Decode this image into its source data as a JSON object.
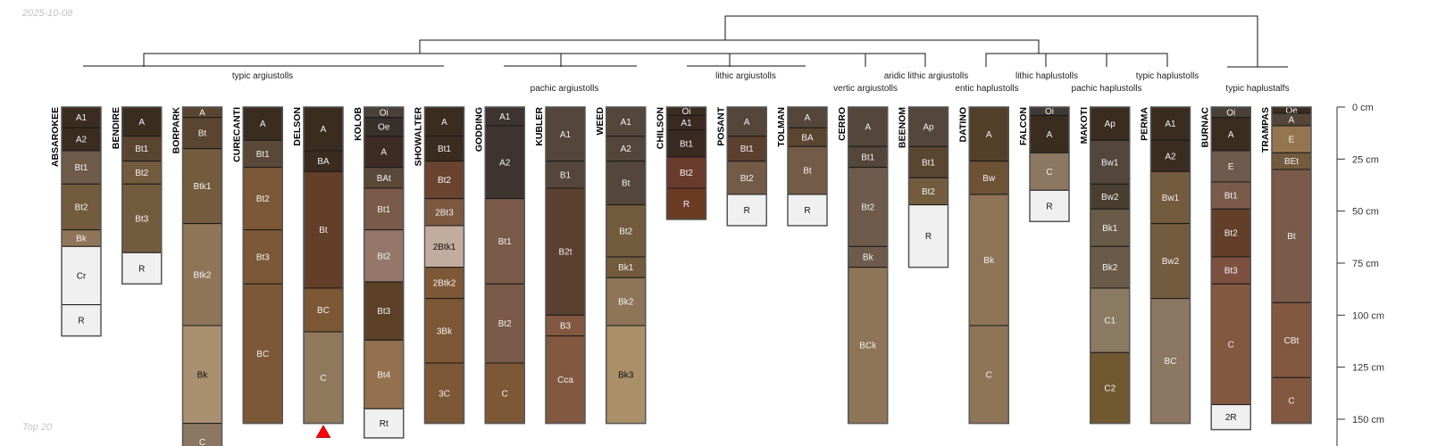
{
  "date_stamp": "2025-10-08",
  "footer_note": "Top 20",
  "depth_axis": {
    "unit": "cm",
    "ticks": [
      "0 cm",
      "25 cm",
      "50 cm",
      "75 cm",
      "100 cm",
      "125 cm",
      "150 cm"
    ],
    "tick_values": [
      0,
      25,
      50,
      75,
      100,
      125,
      150
    ]
  },
  "marker_color": "#ff0000",
  "clusters": [
    {
      "label": "typic argiustolls"
    },
    {
      "label": "pachic argiustolls"
    },
    {
      "label": "lithic argiustolls"
    },
    {
      "label": "vertic argiustolls"
    },
    {
      "label": "aridic lithic argiustolls"
    },
    {
      "label": "entic haplustolls"
    },
    {
      "label": "lithic haplustolls"
    },
    {
      "label": "pachic haplustolls"
    },
    {
      "label": "typic haplustolls"
    },
    {
      "label": "typic haplustalfs"
    }
  ],
  "profiles": [
    {
      "name": "ABSAROKEE",
      "horizons": [
        {
          "name": "A1",
          "top": 0,
          "bottom": 10,
          "color": "#3b2c20"
        },
        {
          "name": "A2",
          "top": 10,
          "bottom": 21,
          "color": "#3b2c20"
        },
        {
          "name": "Bt1",
          "top": 21,
          "bottom": 37,
          "color": "#6e5b49"
        },
        {
          "name": "Bt2",
          "top": 37,
          "bottom": 59,
          "color": "#735b3e"
        },
        {
          "name": "Bk",
          "top": 59,
          "bottom": 67,
          "color": "#8e7558"
        },
        {
          "name": "Cr",
          "top": 67,
          "bottom": 95,
          "color": "#f0f0f0"
        },
        {
          "name": "R",
          "top": 95,
          "bottom": 110,
          "color": "#f0f0f0"
        }
      ]
    },
    {
      "name": "BENDIRE",
      "horizons": [
        {
          "name": "A",
          "top": 0,
          "bottom": 14,
          "color": "#3b2c20"
        },
        {
          "name": "Bt1",
          "top": 14,
          "bottom": 26,
          "color": "#5a4530"
        },
        {
          "name": "Bt2",
          "top": 26,
          "bottom": 37,
          "color": "#735b3e"
        },
        {
          "name": "Bt3",
          "top": 37,
          "bottom": 70,
          "color": "#735b3e"
        },
        {
          "name": "R",
          "top": 70,
          "bottom": 85,
          "color": "#f0f0f0"
        }
      ]
    },
    {
      "name": "BORPARK",
      "horizons": [
        {
          "name": "A",
          "top": 0,
          "bottom": 5,
          "color": "#5a4530"
        },
        {
          "name": "Bt",
          "top": 5,
          "bottom": 20,
          "color": "#5a4530"
        },
        {
          "name": "Btk1",
          "top": 20,
          "bottom": 56,
          "color": "#735b3e"
        },
        {
          "name": "Btk2",
          "top": 56,
          "bottom": 105,
          "color": "#8e7558"
        },
        {
          "name": "Bk",
          "top": 105,
          "bottom": 152,
          "color": "#a89070"
        },
        {
          "name": "C",
          "top": 152,
          "bottom": 170,
          "color": "#8b7762"
        }
      ]
    },
    {
      "name": "CURECANTI",
      "horizons": [
        {
          "name": "A",
          "top": 0,
          "bottom": 16,
          "color": "#3b2c20"
        },
        {
          "name": "Bt1",
          "top": 16,
          "bottom": 29,
          "color": "#5a4838"
        },
        {
          "name": "Bt2",
          "top": 29,
          "bottom": 59,
          "color": "#7d5837"
        },
        {
          "name": "Bt3",
          "top": 59,
          "bottom": 85,
          "color": "#7d5837"
        },
        {
          "name": "BC",
          "top": 85,
          "bottom": 152,
          "color": "#7d5837"
        }
      ]
    },
    {
      "name": "DELSON",
      "marked": true,
      "horizons": [
        {
          "name": "A",
          "top": 0,
          "bottom": 21,
          "color": "#3b2c20"
        },
        {
          "name": "BA",
          "top": 21,
          "bottom": 31,
          "color": "#3b2c20"
        },
        {
          "name": "Bt",
          "top": 31,
          "bottom": 87,
          "color": "#633f29"
        },
        {
          "name": "BC",
          "top": 87,
          "bottom": 108,
          "color": "#7d5837"
        },
        {
          "name": "C",
          "top": 108,
          "bottom": 152,
          "color": "#8e795c"
        }
      ]
    },
    {
      "name": "KOLOB",
      "horizons": [
        {
          "name": "Oi",
          "top": 0,
          "bottom": 5,
          "color": "#4a4038"
        },
        {
          "name": "Oe",
          "top": 5,
          "bottom": 14,
          "color": "#3a302a"
        },
        {
          "name": "A",
          "top": 14,
          "bottom": 29,
          "color": "#3e2c24"
        },
        {
          "name": "BAt",
          "top": 29,
          "bottom": 39,
          "color": "#5a4838"
        },
        {
          "name": "Bt1",
          "top": 39,
          "bottom": 59,
          "color": "#7a5a48"
        },
        {
          "name": "Bt2",
          "top": 59,
          "bottom": 84,
          "color": "#94766a"
        },
        {
          "name": "Bt3",
          "top": 84,
          "bottom": 112,
          "color": "#5c4028"
        },
        {
          "name": "Bt4",
          "top": 112,
          "bottom": 145,
          "color": "#94704f"
        },
        {
          "name": "Rt",
          "top": 145,
          "bottom": 159,
          "color": "#f0f0f0"
        }
      ]
    },
    {
      "name": "SHOWALTER",
      "horizons": [
        {
          "name": "A",
          "top": 0,
          "bottom": 14,
          "color": "#3b2c20"
        },
        {
          "name": "Bt1",
          "top": 14,
          "bottom": 26,
          "color": "#3b2c20"
        },
        {
          "name": "Bt2",
          "top": 26,
          "bottom": 44,
          "color": "#6a4430"
        },
        {
          "name": "2Bt3",
          "top": 44,
          "bottom": 57,
          "color": "#7d5840"
        },
        {
          "name": "2Btk1",
          "top": 57,
          "bottom": 77,
          "color": "#c2ac9e"
        },
        {
          "name": "2Btk2",
          "top": 77,
          "bottom": 92,
          "color": "#7d5837"
        },
        {
          "name": "3Bk",
          "top": 92,
          "bottom": 123,
          "color": "#7d5837"
        },
        {
          "name": "3C",
          "top": 123,
          "bottom": 152,
          "color": "#7d5837"
        }
      ]
    },
    {
      "name": "GODDING",
      "horizons": [
        {
          "name": "A1",
          "top": 0,
          "bottom": 9,
          "color": "#3d3430"
        },
        {
          "name": "A2",
          "top": 9,
          "bottom": 44,
          "color": "#3d3430"
        },
        {
          "name": "Bt1",
          "top": 44,
          "bottom": 85,
          "color": "#7a5a48"
        },
        {
          "name": "Bt2",
          "top": 85,
          "bottom": 123,
          "color": "#7a5a48"
        },
        {
          "name": "C",
          "top": 123,
          "bottom": 152,
          "color": "#7d5837"
        }
      ]
    },
    {
      "name": "KUBLER",
      "horizons": [
        {
          "name": "A1",
          "top": 0,
          "bottom": 26,
          "color": "#54463a"
        },
        {
          "name": "B1",
          "top": 26,
          "bottom": 39,
          "color": "#54463a"
        },
        {
          "name": "B2t",
          "top": 39,
          "bottom": 100,
          "color": "#5c4030"
        },
        {
          "name": "B3",
          "top": 100,
          "bottom": 110,
          "color": "#835840"
        },
        {
          "name": "Cca",
          "top": 110,
          "bottom": 152,
          "color": "#835840"
        }
      ]
    },
    {
      "name": "WEED",
      "horizons": [
        {
          "name": "A1",
          "top": 0,
          "bottom": 14,
          "color": "#54463a"
        },
        {
          "name": "A2",
          "top": 14,
          "bottom": 26,
          "color": "#54463a"
        },
        {
          "name": "Bt",
          "top": 26,
          "bottom": 47,
          "color": "#54463a"
        },
        {
          "name": "Bt2",
          "top": 47,
          "bottom": 72,
          "color": "#735b3e"
        },
        {
          "name": "Bk1",
          "top": 72,
          "bottom": 82,
          "color": "#735b3e"
        },
        {
          "name": "Bk2",
          "top": 82,
          "bottom": 105,
          "color": "#8e7558"
        },
        {
          "name": "Bk3",
          "top": 105,
          "bottom": 152,
          "color": "#aa8f68"
        }
      ]
    },
    {
      "name": "CHILSON",
      "horizons": [
        {
          "name": "Oi",
          "top": 0,
          "bottom": 4,
          "color": "#3b2c20"
        },
        {
          "name": "A1",
          "top": 4,
          "bottom": 11,
          "color": "#3b2a22"
        },
        {
          "name": "Bt1",
          "top": 11,
          "bottom": 24,
          "color": "#3b2a22"
        },
        {
          "name": "Bt2",
          "top": 24,
          "bottom": 39,
          "color": "#6a3c2e"
        },
        {
          "name": "R",
          "top": 39,
          "bottom": 54,
          "color": "#6b3b24"
        }
      ]
    },
    {
      "name": "POSANT",
      "horizons": [
        {
          "name": "A",
          "top": 0,
          "bottom": 14,
          "color": "#54463a"
        },
        {
          "name": "Bt1",
          "top": 14,
          "bottom": 26,
          "color": "#5c4030"
        },
        {
          "name": "Bt2",
          "top": 26,
          "bottom": 42,
          "color": "#735b48"
        },
        {
          "name": "R",
          "top": 42,
          "bottom": 57,
          "color": "#f0f0f0"
        }
      ]
    },
    {
      "name": "TOLMAN",
      "horizons": [
        {
          "name": "A",
          "top": 0,
          "bottom": 10,
          "color": "#54463a"
        },
        {
          "name": "BA",
          "top": 10,
          "bottom": 19,
          "color": "#5a4530"
        },
        {
          "name": "Bt",
          "top": 19,
          "bottom": 42,
          "color": "#735b48"
        },
        {
          "name": "R",
          "top": 42,
          "bottom": 57,
          "color": "#f0f0f0"
        }
      ]
    },
    {
      "name": "CERRO",
      "horizons": [
        {
          "name": "A",
          "top": 0,
          "bottom": 19,
          "color": "#54463a"
        },
        {
          "name": "Bt1",
          "top": 19,
          "bottom": 29,
          "color": "#54463a"
        },
        {
          "name": "Bt2",
          "top": 29,
          "bottom": 67,
          "color": "#6e5b4c"
        },
        {
          "name": "Bk",
          "top": 67,
          "bottom": 77,
          "color": "#6e5b4c"
        },
        {
          "name": "BCk",
          "top": 77,
          "bottom": 152,
          "color": "#8e7558"
        }
      ]
    },
    {
      "name": "BEENOM",
      "horizons": [
        {
          "name": "Ap",
          "top": 0,
          "bottom": 19,
          "color": "#54463a"
        },
        {
          "name": "Bt1",
          "top": 19,
          "bottom": 34,
          "color": "#5a4530"
        },
        {
          "name": "Bt2",
          "top": 34,
          "bottom": 47,
          "color": "#735b3e"
        },
        {
          "name": "R",
          "top": 47,
          "bottom": 77,
          "color": "#f0f0f0"
        }
      ]
    },
    {
      "name": "DATINO",
      "horizons": [
        {
          "name": "A",
          "top": 0,
          "bottom": 26,
          "color": "#54402a"
        },
        {
          "name": "Bw",
          "top": 26,
          "bottom": 42,
          "color": "#6e5236"
        },
        {
          "name": "Bk",
          "top": 42,
          "bottom": 105,
          "color": "#8e7558"
        },
        {
          "name": "C",
          "top": 105,
          "bottom": 152,
          "color": "#8e7558"
        }
      ]
    },
    {
      "name": "FALCON",
      "horizons": [
        {
          "name": "Oi",
          "top": 0,
          "bottom": 4,
          "color": "#403a36"
        },
        {
          "name": "A",
          "top": 4,
          "bottom": 22,
          "color": "#3b2c20"
        },
        {
          "name": "C",
          "top": 22,
          "bottom": 40,
          "color": "#8b7762"
        },
        {
          "name": "R",
          "top": 40,
          "bottom": 55,
          "color": "#f0f0f0"
        }
      ]
    },
    {
      "name": "MAKOTI",
      "horizons": [
        {
          "name": "Ap",
          "top": 0,
          "bottom": 16,
          "color": "#3b2c20"
        },
        {
          "name": "Bw1",
          "top": 16,
          "bottom": 37,
          "color": "#54463a"
        },
        {
          "name": "Bw2",
          "top": 37,
          "bottom": 49,
          "color": "#4a3e30"
        },
        {
          "name": "Bk1",
          "top": 49,
          "bottom": 67,
          "color": "#6a5a48"
        },
        {
          "name": "Bk2",
          "top": 67,
          "bottom": 87,
          "color": "#6a5a48"
        },
        {
          "name": "C1",
          "top": 87,
          "bottom": 118,
          "color": "#8b7a62"
        },
        {
          "name": "C2",
          "top": 118,
          "bottom": 152,
          "color": "#705830"
        }
      ]
    },
    {
      "name": "PERMA",
      "horizons": [
        {
          "name": "A1",
          "top": 0,
          "bottom": 16,
          "color": "#3b2c20"
        },
        {
          "name": "A2",
          "top": 16,
          "bottom": 31,
          "color": "#3b2c20"
        },
        {
          "name": "Bw1",
          "top": 31,
          "bottom": 56,
          "color": "#735b3e"
        },
        {
          "name": "Bw2",
          "top": 56,
          "bottom": 92,
          "color": "#735b3e"
        },
        {
          "name": "BC",
          "top": 92,
          "bottom": 152,
          "color": "#8b7762"
        }
      ]
    },
    {
      "name": "BURNAC",
      "horizons": [
        {
          "name": "Oi",
          "top": 0,
          "bottom": 5,
          "color": "#4a4038"
        },
        {
          "name": "A",
          "top": 5,
          "bottom": 21,
          "color": "#3b2c20"
        },
        {
          "name": "E",
          "top": 21,
          "bottom": 36,
          "color": "#6e5b4c"
        },
        {
          "name": "Bt1",
          "top": 36,
          "bottom": 49,
          "color": "#7a5a48"
        },
        {
          "name": "Bt2",
          "top": 49,
          "bottom": 72,
          "color": "#633f29"
        },
        {
          "name": "Bt3",
          "top": 72,
          "bottom": 85,
          "color": "#7d5040"
        },
        {
          "name": "C",
          "top": 85,
          "bottom": 143,
          "color": "#835840"
        },
        {
          "name": "2R",
          "top": 143,
          "bottom": 155,
          "color": "#f0f0f0"
        }
      ]
    },
    {
      "name": "TRAMPAS",
      "horizons": [
        {
          "name": "Oe",
          "top": 0,
          "bottom": 3,
          "color": "#3b2c20"
        },
        {
          "name": "A",
          "top": 3,
          "bottom": 9,
          "color": "#54463a"
        },
        {
          "name": "E",
          "top": 9,
          "bottom": 22,
          "color": "#94754f"
        },
        {
          "name": "BEt",
          "top": 22,
          "bottom": 30,
          "color": "#735b3e"
        },
        {
          "name": "Bt",
          "top": 30,
          "bottom": 94,
          "color": "#7a5a48"
        },
        {
          "name": "CBt",
          "top": 94,
          "bottom": 130,
          "color": "#835840"
        },
        {
          "name": "C",
          "top": 130,
          "bottom": 152,
          "color": "#835840"
        }
      ]
    }
  ]
}
